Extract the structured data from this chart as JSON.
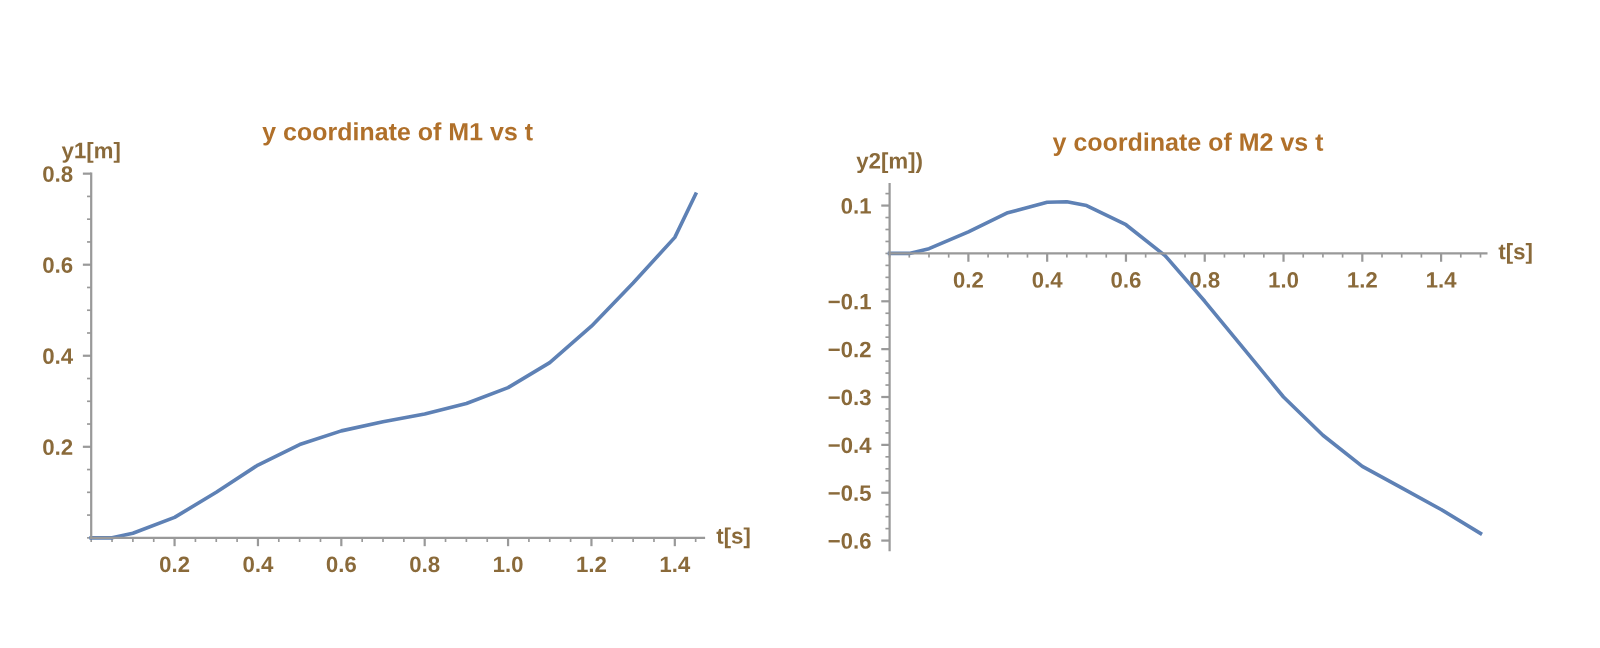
{
  "chart_data": [
    {
      "type": "line",
      "title": "y coordinate of M1 vs t",
      "xlabel": "t[s]",
      "ylabel": "y1[m]",
      "x": [
        0,
        0.05,
        0.1,
        0.2,
        0.3,
        0.4,
        0.5,
        0.6,
        0.7,
        0.8,
        0.9,
        1.0,
        1.1,
        1.2,
        1.3,
        1.4,
        1.45
      ],
      "series": [
        {
          "color": "#5e81b5",
          "values": [
            0,
            0,
            0.01,
            0.045,
            0.1,
            0.16,
            0.205,
            0.235,
            0.255,
            0.272,
            0.295,
            0.33,
            0.385,
            0.465,
            0.56,
            0.66,
            0.755
          ]
        }
      ],
      "xlim": [
        0,
        1.47
      ],
      "ylim": [
        0,
        0.8
      ],
      "xticks": [
        0.2,
        0.4,
        0.6,
        0.8,
        {
          "value": 1.0,
          "label": "1.0"
        },
        1.2,
        1.4
      ],
      "yticks": [
        0.2,
        0.4,
        0.6,
        0.8
      ],
      "grid": false,
      "marker": "none",
      "line_style": "solid"
    },
    {
      "type": "line",
      "title": "y coordinate of M2 vs t",
      "xlabel": "t[s]",
      "ylabel": "y2[m])",
      "x": [
        0,
        0.05,
        0.1,
        0.2,
        0.3,
        0.4,
        0.45,
        0.5,
        0.6,
        0.7,
        0.8,
        0.9,
        1.0,
        1.1,
        1.2,
        1.3,
        1.4,
        1.5
      ],
      "series": [
        {
          "color": "#5e81b5",
          "values": [
            0,
            0,
            0.01,
            0.045,
            0.085,
            0.107,
            0.108,
            0.1,
            0.06,
            -0.005,
            -0.1,
            -0.2,
            -0.3,
            -0.38,
            -0.445,
            -0.49,
            -0.535,
            -0.585
          ]
        }
      ],
      "xlim": [
        0,
        1.515
      ],
      "ylim": [
        -0.62,
        0.145
      ],
      "xticks": [
        0.2,
        0.4,
        0.6,
        0.8,
        {
          "value": 1.0,
          "label": "1.0"
        },
        1.2,
        1.4
      ],
      "yticks": [
        0.1,
        {
          "value": -0.1,
          "label": "−0.1"
        },
        {
          "value": -0.2,
          "label": "−0.2"
        },
        {
          "value": -0.3,
          "label": "−0.3"
        },
        {
          "value": -0.4,
          "label": "−0.4"
        },
        {
          "value": -0.5,
          "label": "−0.5"
        },
        {
          "value": -0.6,
          "label": "−0.6"
        }
      ],
      "grid": false,
      "marker": "none",
      "line_style": "solid"
    }
  ]
}
